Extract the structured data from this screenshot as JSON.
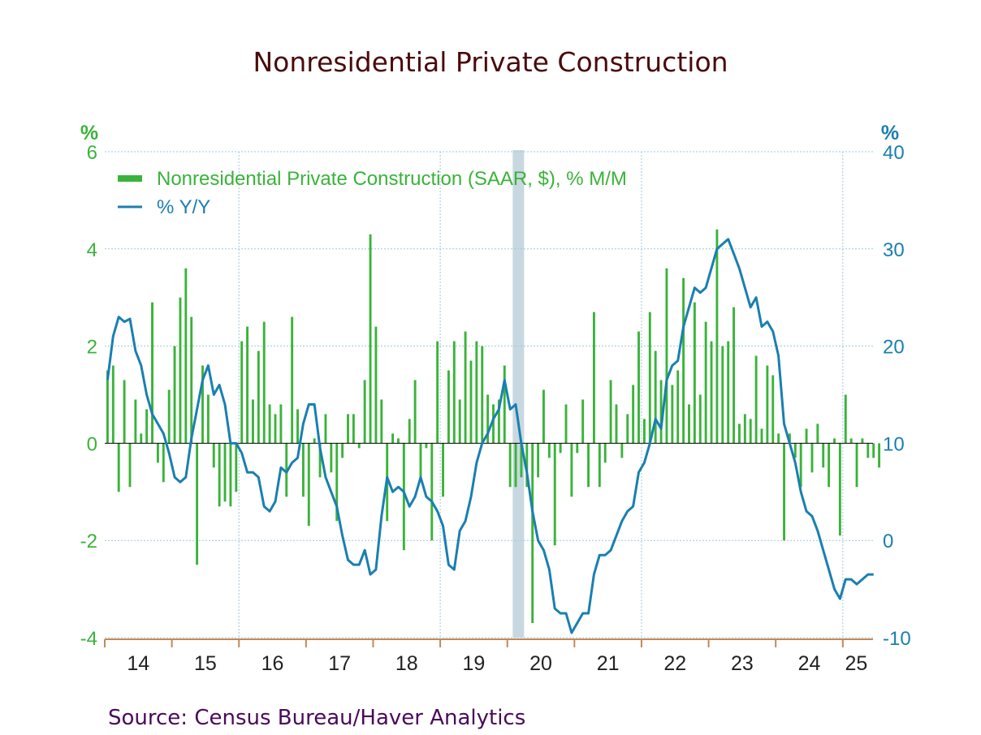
{
  "chart_data": {
    "type": "bar+line",
    "title": "Nonresidential Private Construction",
    "source": "Source:  Census Bureau/Haver Analytics",
    "left_axis": {
      "unit": "%",
      "range": [
        -4,
        6
      ],
      "ticks": [
        "6",
        "4",
        "2",
        "0",
        "-2",
        "-4"
      ],
      "tick_values": [
        6,
        4,
        2,
        0,
        -2,
        -4
      ]
    },
    "right_axis": {
      "unit": "%",
      "range": [
        -10,
        40
      ],
      "ticks": [
        "40",
        "30",
        "20",
        "10",
        "0",
        "-10"
      ],
      "tick_values": [
        40,
        30,
        20,
        10,
        0,
        -10
      ]
    },
    "x_axis": {
      "range": [
        2014.0,
        2025.45
      ],
      "year_labels": [
        "14",
        "15",
        "16",
        "17",
        "18",
        "19",
        "20",
        "21",
        "22",
        "23",
        "24",
        "25"
      ],
      "year_label_positions": [
        2014.5,
        2015.5,
        2016.5,
        2017.5,
        2018.5,
        2019.5,
        2020.5,
        2021.5,
        2022.5,
        2023.5,
        2024.5,
        2025.2
      ],
      "year_ticks": [
        2015,
        2016,
        2017,
        2018,
        2019,
        2020,
        2021,
        2022,
        2023,
        2024,
        2025
      ]
    },
    "grid": {
      "vertical": [
        2016,
        2019,
        2022,
        2025
      ],
      "horizontal": "dotted"
    },
    "recession": [
      2020.08,
      2020.25
    ],
    "legend": {
      "placement": "top-left",
      "bar_label": "Nonresidential Private Construction (SAAR, $), % M/M",
      "line_label": "% Y/Y"
    },
    "colors": {
      "bar": "#3ab33a",
      "line": "#1a7fb0",
      "recession": "#c8d8e0",
      "grid": "#9dc8de",
      "title": "#4a0a0a",
      "source": "#4a0a5a",
      "axis": "#c08a5a"
    },
    "series": [
      {
        "name": "Nonresidential Private Construction (SAAR, $), % M/M",
        "type": "bar",
        "axis": "left",
        "start": 2014.0,
        "step": 0.0833333,
        "values": [
          1.5,
          1.6,
          -1.0,
          1.3,
          -0.9,
          0.9,
          0.2,
          0.7,
          2.9,
          -0.4,
          -0.8,
          1.1,
          2.0,
          3.0,
          3.6,
          2.6,
          -2.5,
          1.6,
          1.0,
          -0.5,
          -1.3,
          -1.2,
          -1.3,
          -1.0,
          2.1,
          2.4,
          0.9,
          1.9,
          2.5,
          0.8,
          0.6,
          0.8,
          -1.1,
          2.6,
          0.7,
          -1.1,
          -1.7,
          0.1,
          -0.7,
          0.6,
          -0.6,
          -1.6,
          -0.3,
          0.6,
          0.6,
          -0.1,
          1.3,
          4.3,
          2.4,
          0.9,
          -1.6,
          0.2,
          0.1,
          -2.2,
          0.5,
          1.3,
          -0.8,
          -0.1,
          -2.0,
          2.1,
          -1.1,
          1.5,
          2.1,
          0.9,
          2.3,
          1.7,
          2.1,
          2.0,
          1.0,
          0.8,
          0.9,
          1.6,
          -0.9,
          -0.9,
          -0.7,
          -0.9,
          -3.7,
          -0.7,
          1.1,
          -0.3,
          -2.1,
          -0.2,
          0.8,
          -1.1,
          -0.2,
          0.9,
          -0.9,
          2.7,
          -0.9,
          -0.4,
          1.3,
          0.8,
          -0.3,
          0.6,
          1.2,
          2.3,
          0.5,
          2.7,
          1.9,
          1.3,
          3.6,
          1.2,
          1.5,
          3.4,
          0.8,
          2.9,
          1.0,
          2.5,
          2.1,
          4.4,
          2.0,
          2.1,
          2.8,
          0.4,
          0.6,
          0.5,
          1.8,
          0.3,
          1.6,
          1.4,
          0.2,
          -2.0,
          0.2,
          -0.3,
          -0.9,
          0.3,
          -0.6,
          0.4,
          -0.5,
          -0.9,
          0.1,
          -1.9,
          1.0,
          0.1,
          -0.9,
          0.1,
          -0.3,
          -0.3,
          -0.5
        ]
      },
      {
        "name": "% Y/Y",
        "type": "line",
        "axis": "right",
        "start": 2014.0,
        "step": 0.0833333,
        "values": [
          16.5,
          21.0,
          23.0,
          22.5,
          22.8,
          19.5,
          18.0,
          15.0,
          13.0,
          12.0,
          11.0,
          9.0,
          6.5,
          6.0,
          6.5,
          10.5,
          13.5,
          16.5,
          18.0,
          15.0,
          16.0,
          14.0,
          10.0,
          10.0,
          9.0,
          7.0,
          7.0,
          6.5,
          3.5,
          3.0,
          4.0,
          7.5,
          7.0,
          8.0,
          8.5,
          12.0,
          14.0,
          14.0,
          9.5,
          6.5,
          5.0,
          3.5,
          0.5,
          -2.0,
          -2.5,
          -2.5,
          -1.0,
          -3.5,
          -3.0,
          2.5,
          6.5,
          5.0,
          5.5,
          5.0,
          3.5,
          4.5,
          6.5,
          4.5,
          4.0,
          3.0,
          1.5,
          -2.5,
          -3.0,
          1.0,
          2.0,
          4.5,
          8.0,
          10.0,
          11.0,
          12.5,
          13.5,
          16.5,
          13.5,
          14.0,
          10.0,
          7.0,
          3.0,
          0.0,
          -1.0,
          -3.0,
          -7.0,
          -7.5,
          -7.5,
          -9.5,
          -8.5,
          -7.5,
          -7.5,
          -3.5,
          -1.5,
          -1.5,
          -1.0,
          0.5,
          2.0,
          3.0,
          3.5,
          7.0,
          8.0,
          10.0,
          12.5,
          11.5,
          16.5,
          18.0,
          18.5,
          22.0,
          24.0,
          26.0,
          25.5,
          26.0,
          28.0,
          30.0,
          30.5,
          31.0,
          29.5,
          28.0,
          26.0,
          24.0,
          25.0,
          22.0,
          22.5,
          21.5,
          19.0,
          12.0,
          10.0,
          8.0,
          5.0,
          3.0,
          2.5,
          1.0,
          -1.0,
          -3.0,
          -5.0,
          -6.0,
          -4.0,
          -4.0,
          -4.5,
          -4.0,
          -3.5,
          -3.5
        ]
      }
    ]
  }
}
